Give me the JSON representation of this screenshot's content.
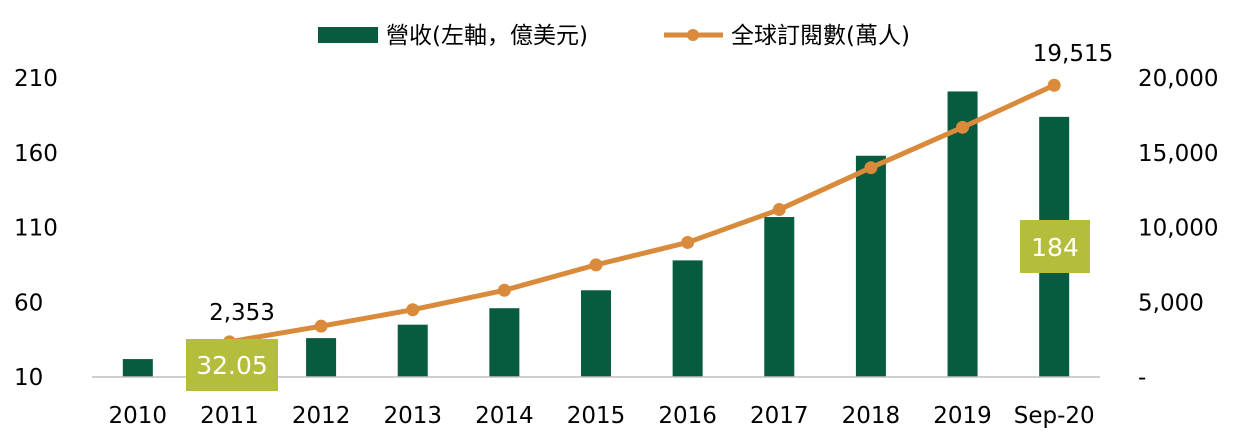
{
  "chart_data": {
    "type": "bar",
    "categories": [
      "2010",
      "2011",
      "2012",
      "2013",
      "2014",
      "2015",
      "2016",
      "2017",
      "2018",
      "2019",
      "Sep-20"
    ],
    "series": [
      {
        "name": "營收(左軸，億美元)",
        "type": "bar",
        "axis": "left",
        "color": "#075b3e",
        "values": [
          22,
          32.05,
          36,
          45,
          56,
          68,
          88,
          117,
          158,
          201,
          184
        ]
      },
      {
        "name": "全球訂閱數(萬人)",
        "type": "line",
        "axis": "right",
        "color": "#d98a3a",
        "values": [
          null,
          2353,
          3400,
          4500,
          5800,
          7500,
          9000,
          11200,
          14000,
          16700,
          19515
        ]
      }
    ],
    "y_left": {
      "ylim": [
        10,
        210
      ],
      "ticks": [
        "10",
        "60",
        "110",
        "160",
        "210"
      ]
    },
    "y_right": {
      "ylim": [
        0,
        20000
      ],
      "ticks": [
        "-",
        "5,000",
        "10,000",
        "15,000",
        "20,000"
      ]
    },
    "annotations": {
      "line_start_label": "2,353",
      "line_end_label": "19,515",
      "bar_2011_label": "32.05",
      "bar_sep20_label": "184",
      "highlight_color": "#b5bd3c"
    },
    "grid": false,
    "legend_position": "top-center"
  }
}
